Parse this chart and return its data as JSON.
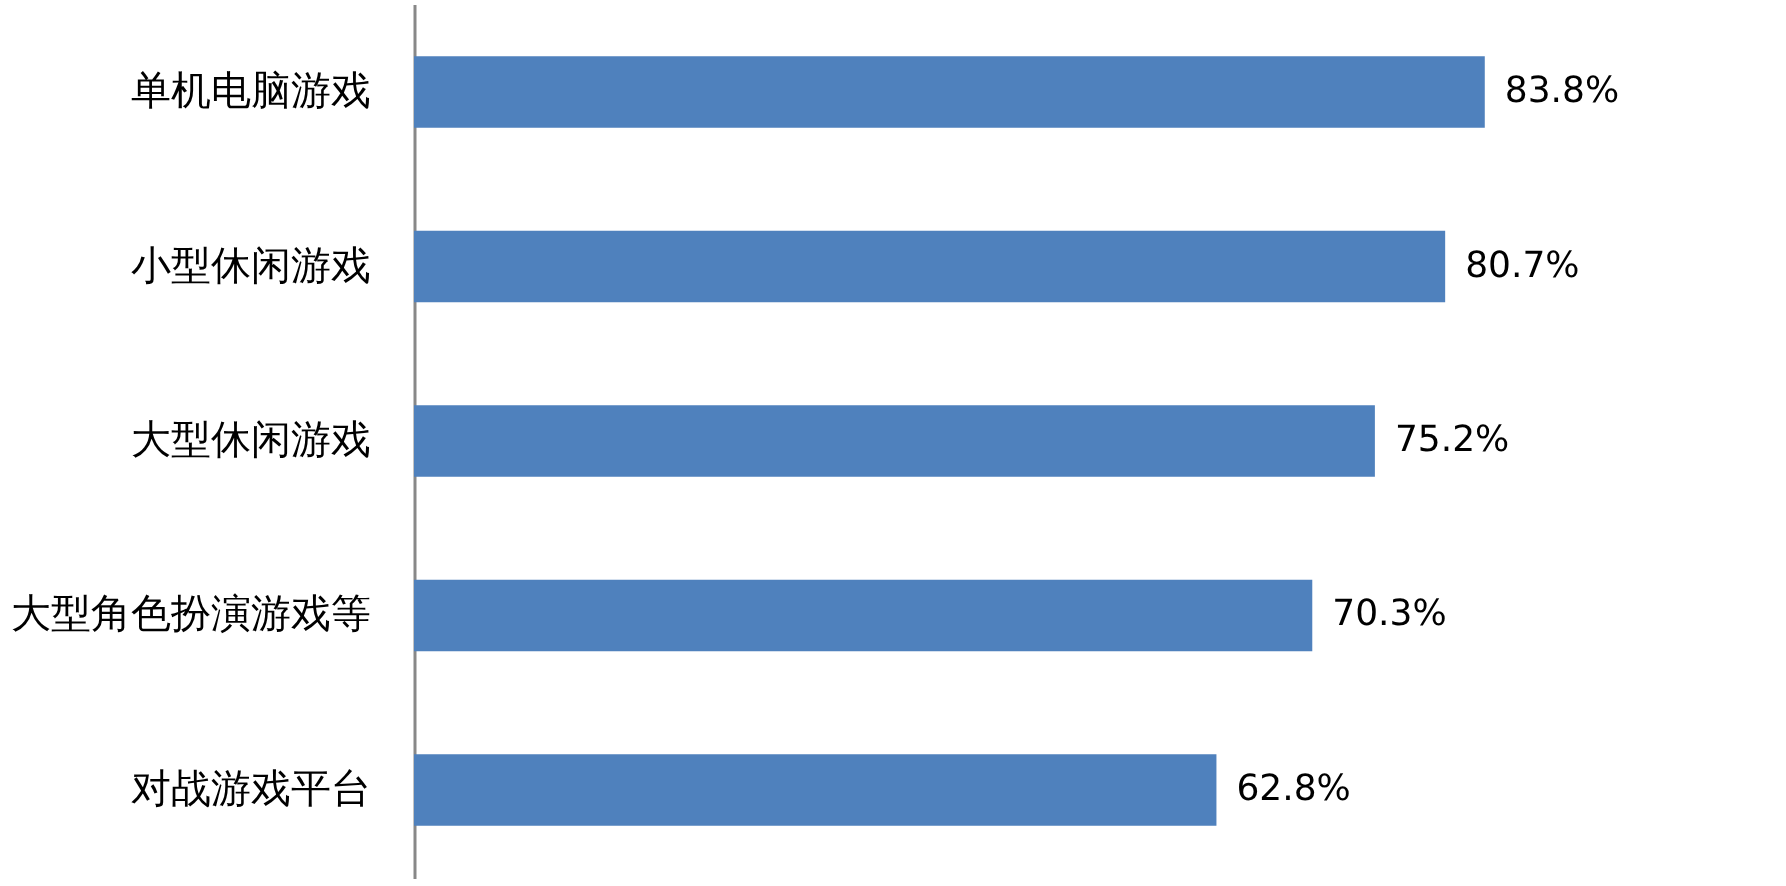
{
  "chart_data": {
    "type": "bar",
    "orientation": "horizontal",
    "categories": [
      "单机电脑游戏",
      "小型休闲游戏",
      "大型休闲游戏",
      "大型角色扮演游戏等",
      "对战游戏平台"
    ],
    "values": [
      83.8,
      80.7,
      75.2,
      70.3,
      62.8
    ],
    "value_labels": [
      "83.8%",
      "80.7%",
      "75.2%",
      "70.3%",
      "62.8%"
    ],
    "color": "#4f81bd"
  }
}
